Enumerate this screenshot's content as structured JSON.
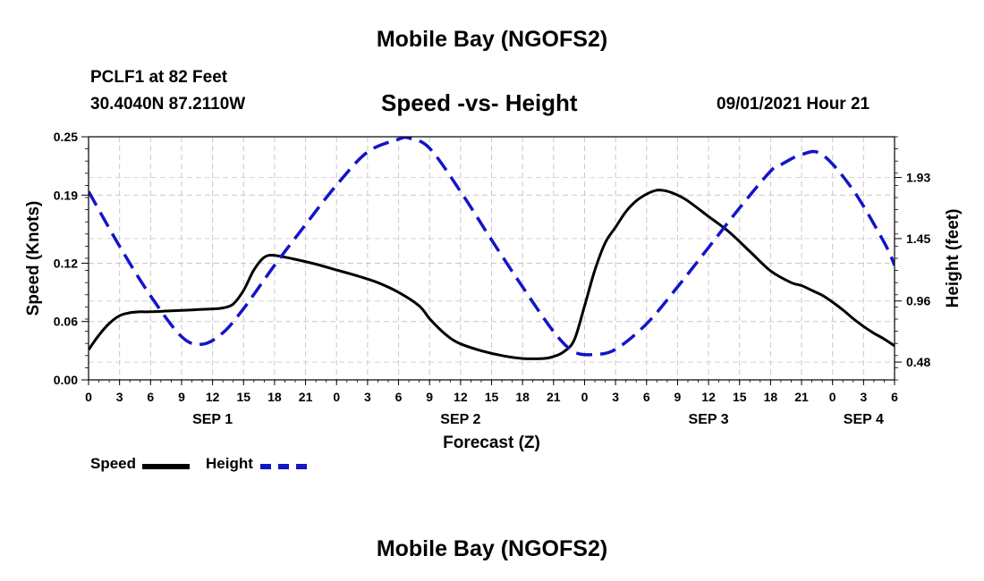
{
  "page": {
    "title_top": "Mobile Bay (NGOFS2)",
    "title_bottom": "Mobile Bay (NGOFS2)",
    "station": "PCLF1 at 82 Feet",
    "coords": "30.4040N  87.2110W",
    "subtitle": "Speed -vs- Height",
    "date": "09/01/2021 Hour 21"
  },
  "legend": {
    "speed_label": "Speed",
    "height_label": "Height",
    "speed_color": "#000000",
    "height_color": "#1414c8"
  },
  "chart_data": {
    "type": "line",
    "xlabel": "Forecast (Z)",
    "ylabel_left": "Speed (Knots)",
    "ylabel_right": "Height (feet)",
    "x_range": [
      0,
      78
    ],
    "x_ticks": [
      "0",
      "3",
      "6",
      "9",
      "12",
      "15",
      "18",
      "21",
      "0",
      "3",
      "6",
      "9",
      "12",
      "15",
      "18",
      "21",
      "0",
      "3",
      "6",
      "9",
      "12",
      "15",
      "18",
      "21",
      "0",
      "3",
      "6"
    ],
    "day_labels": [
      {
        "label": "SEP 1",
        "x": 12
      },
      {
        "label": "SEP 2",
        "x": 36
      },
      {
        "label": "SEP 3",
        "x": 60
      },
      {
        "label": "SEP 4",
        "x": 75
      }
    ],
    "ylim_left": [
      0,
      0.25
    ],
    "yticks_left": [
      "0.00",
      "0.06",
      "0.12",
      "0.19",
      "0.25"
    ],
    "ylim_right": [
      0.34,
      2.25
    ],
    "yticks_right": [
      "0.48",
      "0.96",
      "1.45",
      "1.93"
    ],
    "grid": true,
    "series": [
      {
        "name": "Speed",
        "axis": "left",
        "x": [
          0,
          1,
          2,
          3,
          4,
          5,
          6,
          8,
          10,
          12,
          13,
          14,
          15,
          16,
          17,
          18,
          20,
          22,
          24,
          26,
          28,
          30,
          32,
          33,
          34,
          35,
          36,
          38,
          40,
          42,
          44,
          45,
          46,
          47,
          48,
          49,
          50,
          51,
          52,
          53,
          54,
          55,
          56,
          57,
          58,
          60,
          62,
          64,
          66,
          68,
          69,
          70,
          71,
          72,
          73,
          74,
          75,
          76,
          77,
          78
        ],
        "y": [
          0.031,
          0.046,
          0.058,
          0.066,
          0.069,
          0.07,
          0.07,
          0.071,
          0.072,
          0.073,
          0.074,
          0.078,
          0.092,
          0.113,
          0.126,
          0.128,
          0.124,
          0.119,
          0.113,
          0.107,
          0.1,
          0.09,
          0.076,
          0.063,
          0.052,
          0.043,
          0.037,
          0.03,
          0.025,
          0.022,
          0.022,
          0.024,
          0.029,
          0.041,
          0.076,
          0.113,
          0.141,
          0.157,
          0.173,
          0.184,
          0.191,
          0.195,
          0.194,
          0.19,
          0.184,
          0.168,
          0.152,
          0.132,
          0.112,
          0.1,
          0.097,
          0.092,
          0.087,
          0.08,
          0.072,
          0.063,
          0.055,
          0.048,
          0.042,
          0.035
        ]
      },
      {
        "name": "Height",
        "axis": "right",
        "x": [
          0,
          3,
          6,
          9,
          11,
          13,
          15,
          18,
          21,
          24,
          27,
          30,
          31,
          33,
          36,
          39,
          42,
          45,
          47,
          49,
          51,
          54,
          57,
          60,
          63,
          66,
          67,
          69,
          71,
          74,
          77,
          78
        ],
        "y": [
          1.82,
          1.39,
          1.0,
          0.68,
          0.62,
          0.71,
          0.9,
          1.24,
          1.56,
          1.87,
          2.13,
          2.23,
          2.24,
          2.16,
          1.82,
          1.44,
          1.07,
          0.72,
          0.56,
          0.54,
          0.58,
          0.78,
          1.07,
          1.38,
          1.69,
          1.98,
          2.03,
          2.11,
          2.11,
          1.83,
          1.42,
          1.24
        ]
      }
    ]
  }
}
